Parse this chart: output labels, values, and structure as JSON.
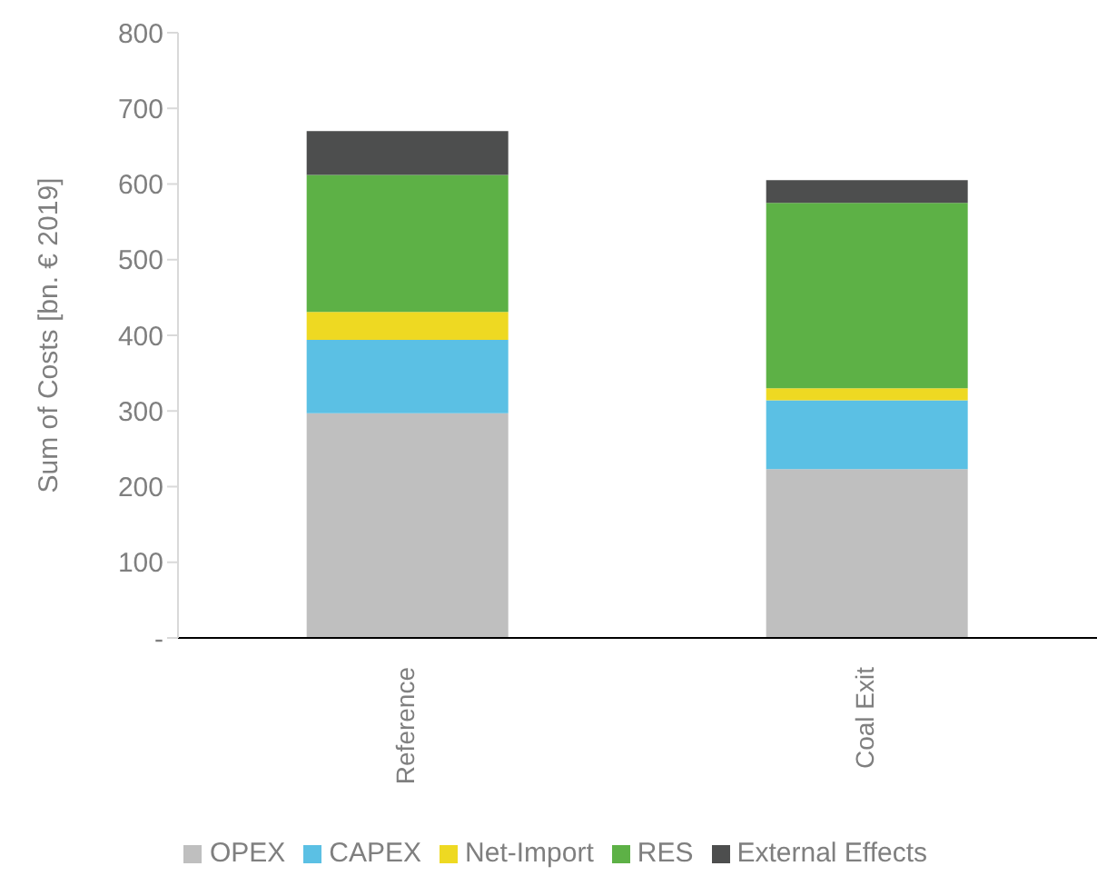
{
  "chart_data": {
    "type": "bar",
    "stacked": true,
    "ylabel": "Sum of Costs [bn. € 2019]",
    "categories": [
      "Reference",
      "Coal Exit"
    ],
    "series": [
      {
        "name": "OPEX",
        "color": "#bfbfbf",
        "values": [
          297,
          223
        ]
      },
      {
        "name": "CAPEX",
        "color": "#5bc0e4",
        "values": [
          97,
          91
        ]
      },
      {
        "name": "Net-Import",
        "color": "#eed922",
        "values": [
          37,
          16
        ]
      },
      {
        "name": "RES",
        "color": "#5db146",
        "values": [
          181,
          245
        ]
      },
      {
        "name": "External Effects",
        "color": "#4d4e4e",
        "values": [
          58,
          30
        ]
      }
    ],
    "ylim": [
      0,
      800
    ],
    "yticks": [
      {
        "value": 0,
        "label": "-"
      },
      100,
      200,
      300,
      400,
      500,
      600,
      700,
      800
    ],
    "grid": false,
    "legend": "bottom"
  }
}
